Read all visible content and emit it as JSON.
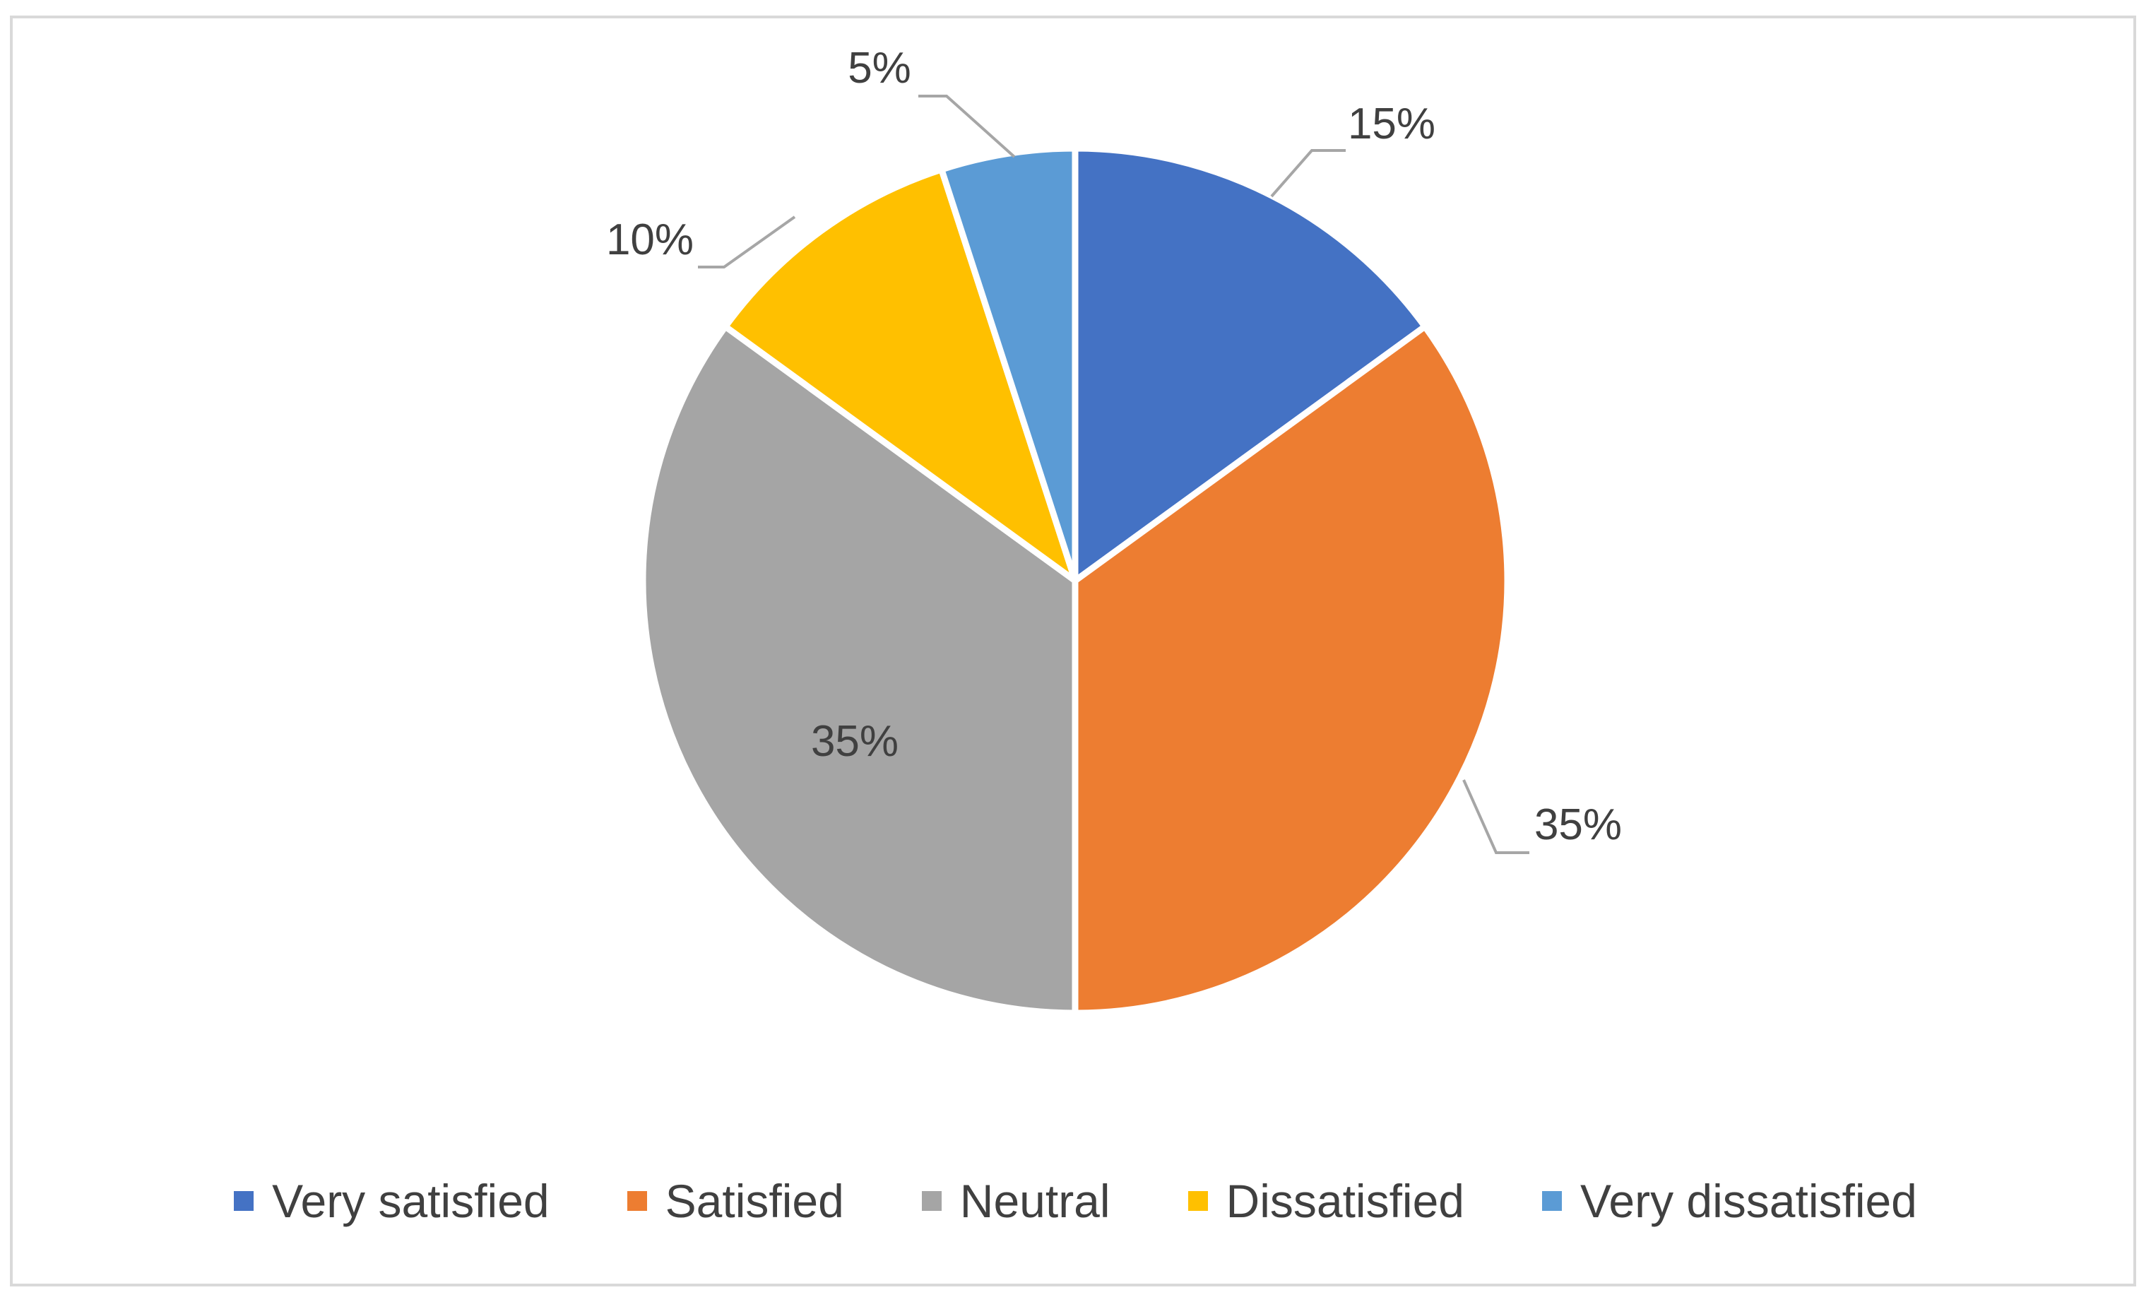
{
  "chart_data": {
    "type": "pie",
    "slices": [
      {
        "name": "Very satisfied",
        "value": 15,
        "label": "15%",
        "color": "#4472C4"
      },
      {
        "name": "Satisfied",
        "value": 35,
        "label": "35%",
        "color": "#ED7D31"
      },
      {
        "name": "Neutral",
        "value": 35,
        "label": "35%",
        "color": "#A5A5A5"
      },
      {
        "name": "Dissatisfied",
        "value": 10,
        "label": "10%",
        "color": "#FFC000"
      },
      {
        "name": "Very dissatisfied",
        "value": 5,
        "label": "5%",
        "color": "#5B9BD5"
      }
    ],
    "legend_position": "bottom",
    "start_angle": "12 o'clock, clockwise"
  }
}
